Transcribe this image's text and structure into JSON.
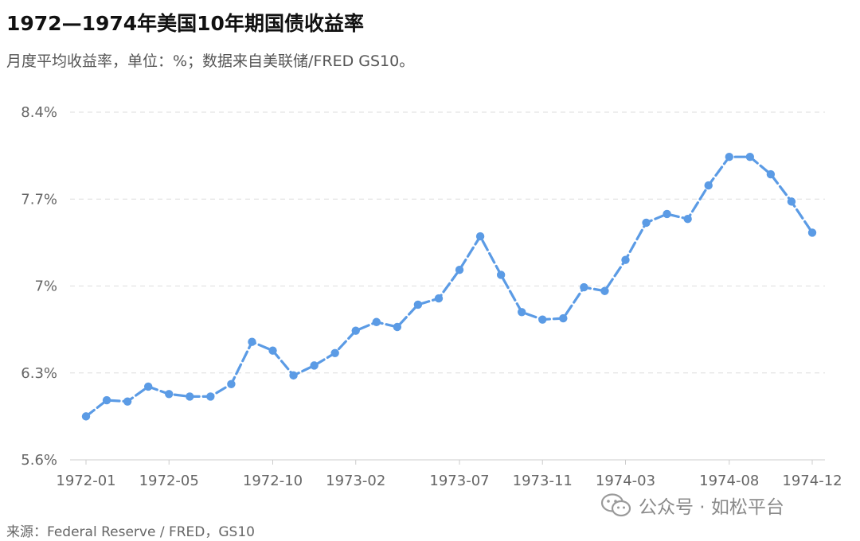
{
  "title": "1972—1974年美国10年期国债收益率",
  "subtitle": "月度平均收益率，单位：%；数据来自美联储/FRED GS10。",
  "source": "来源：Federal Reserve / FRED，GS10",
  "watermark": {
    "text": "公众号 · 如松平台",
    "icon": "wechat-icon"
  },
  "chart_data": {
    "type": "line",
    "title": "1972—1974年美国10年期国债收益率",
    "subtitle": "月度平均收益率，单位：%；数据来自美联储/FRED GS10。",
    "xlabel": "",
    "ylabel": "",
    "ylim": [
      5.6,
      8.4
    ],
    "yticks": [
      5.6,
      6.3,
      7,
      7.7,
      8.4
    ],
    "ytick_labels": [
      "5.6%",
      "6.3%",
      "7%",
      "7.7%",
      "8.4%"
    ],
    "xtick_labels": [
      "1972-01",
      "1972-05",
      "1972-10",
      "1973-02",
      "1973-07",
      "1973-11",
      "1974-03",
      "1974-08",
      "1974-12"
    ],
    "grid": true,
    "legend": "none",
    "color": "#5b9be5",
    "x": [
      "1972-01",
      "1972-02",
      "1972-03",
      "1972-04",
      "1972-05",
      "1972-06",
      "1972-07",
      "1972-08",
      "1972-09",
      "1972-10",
      "1972-11",
      "1972-12",
      "1973-01",
      "1973-02",
      "1973-03",
      "1973-04",
      "1973-05",
      "1973-06",
      "1973-07",
      "1973-08",
      "1973-09",
      "1973-10",
      "1973-11",
      "1973-12",
      "1974-01",
      "1974-02",
      "1974-03",
      "1974-04",
      "1974-05",
      "1974-06",
      "1974-07",
      "1974-08",
      "1974-09",
      "1974-10",
      "1974-11",
      "1974-12"
    ],
    "series": [
      {
        "values": [
          5.95,
          6.08,
          6.07,
          6.19,
          6.13,
          6.11,
          6.11,
          6.21,
          6.55,
          6.48,
          6.28,
          6.36,
          6.46,
          6.64,
          6.71,
          6.67,
          6.85,
          6.9,
          7.13,
          7.4,
          7.09,
          6.79,
          6.73,
          6.74,
          6.99,
          6.96,
          7.21,
          7.51,
          7.58,
          7.54,
          7.81,
          8.04,
          8.04,
          7.9,
          7.68,
          7.43
        ]
      }
    ]
  }
}
